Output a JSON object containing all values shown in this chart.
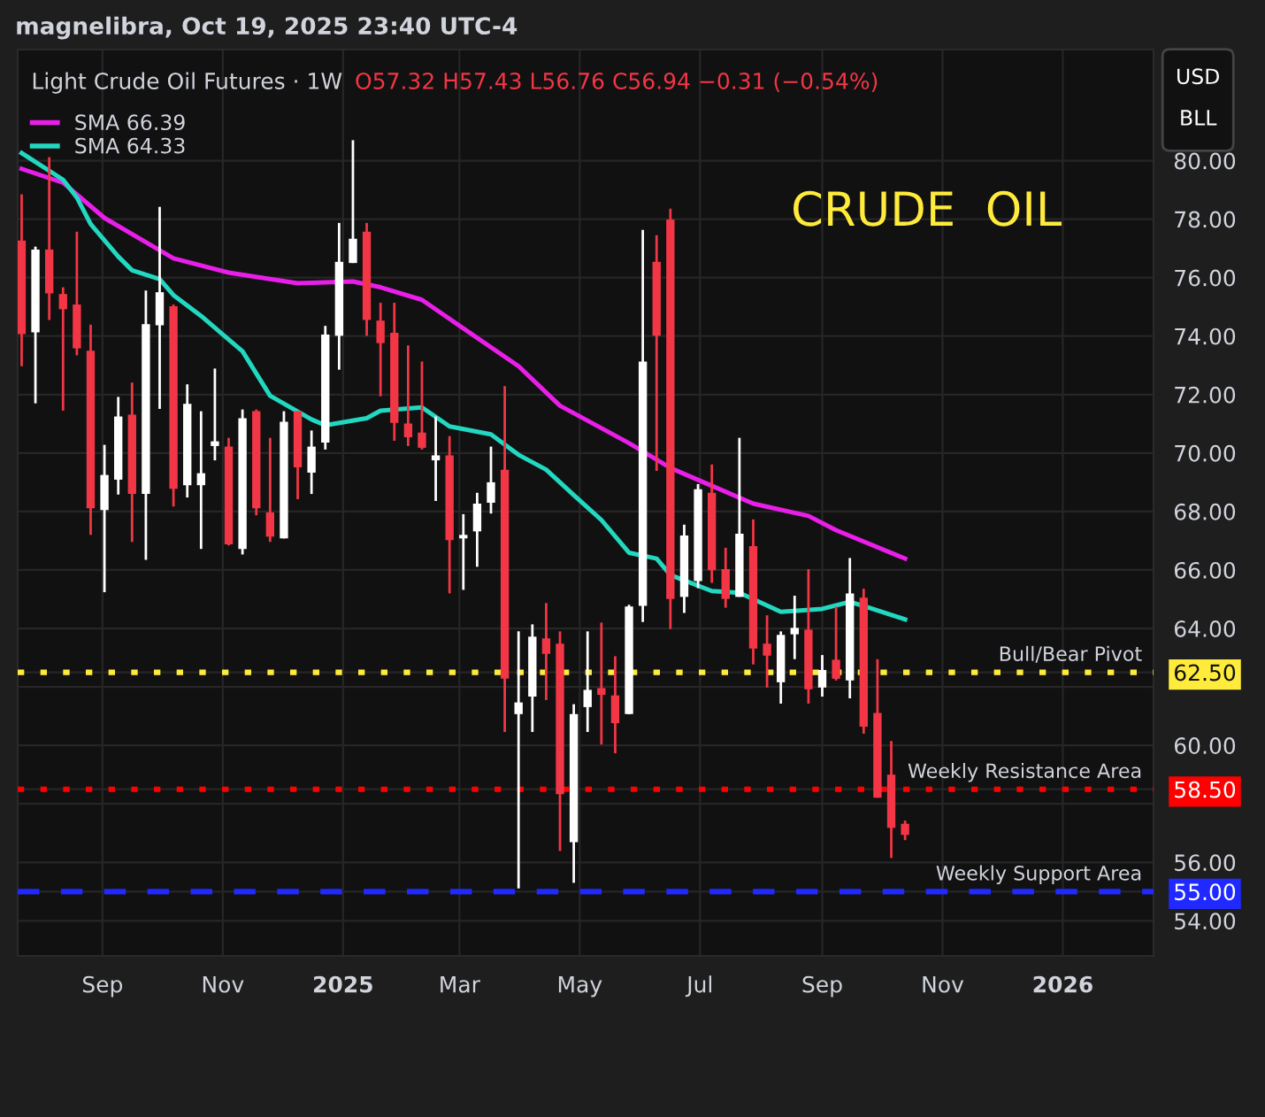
{
  "chart_data": {
    "type": "candlestick",
    "title": "Light Crude Oil Futures · 1W",
    "subtitle": "O57.32 H57.43 L56.76 C56.94 −0.31 (−0.54%)",
    "annotations": [
      "magnelibra, Oct 19, 2025 23:40 UTC-4",
      "CRUDE  OIL",
      "USD",
      "BLL"
    ],
    "x": [
      "2024-07-22",
      "2024-07-29",
      "2024-08-05",
      "2024-08-12",
      "2024-08-19",
      "2024-08-26",
      "2024-09-02",
      "2024-09-09",
      "2024-09-16",
      "2024-09-23",
      "2024-09-30",
      "2024-10-07",
      "2024-10-14",
      "2024-10-21",
      "2024-10-28",
      "2024-11-04",
      "2024-11-11",
      "2024-11-18",
      "2024-11-25",
      "2024-12-02",
      "2024-12-09",
      "2024-12-16",
      "2024-12-23",
      "2024-12-30",
      "2025-01-06",
      "2025-01-13",
      "2025-01-20",
      "2025-01-27",
      "2025-02-03",
      "2025-02-10",
      "2025-02-17",
      "2025-02-24",
      "2025-03-03",
      "2025-03-10",
      "2025-03-17",
      "2025-03-24",
      "2025-03-31",
      "2025-04-07",
      "2025-04-14",
      "2025-04-21",
      "2025-04-28",
      "2025-05-05",
      "2025-05-12",
      "2025-05-19",
      "2025-05-26",
      "2025-06-02",
      "2025-06-09",
      "2025-06-16",
      "2025-06-23",
      "2025-06-30",
      "2025-07-07",
      "2025-07-14",
      "2025-07-21",
      "2025-07-28",
      "2025-08-04",
      "2025-08-11",
      "2025-08-18",
      "2025-08-25",
      "2025-09-01",
      "2025-09-08",
      "2025-09-15",
      "2025-09-22",
      "2025-09-29",
      "2025-10-06",
      "2025-10-13"
    ],
    "ohlc": [
      [
        77.27,
        78.85,
        72.97,
        74.07
      ],
      [
        74.13,
        77.06,
        71.7,
        76.96
      ],
      [
        76.96,
        80.12,
        74.55,
        75.46
      ],
      [
        75.44,
        75.67,
        71.45,
        74.92
      ],
      [
        75.08,
        77.57,
        73.34,
        73.58
      ],
      [
        73.5,
        74.39,
        67.2,
        68.11
      ],
      [
        68.05,
        70.28,
        65.24,
        69.25
      ],
      [
        69.09,
        71.92,
        68.58,
        71.25
      ],
      [
        71.31,
        72.41,
        66.96,
        68.6
      ],
      [
        68.6,
        75.56,
        66.35,
        74.41
      ],
      [
        74.37,
        78.42,
        71.51,
        75.5
      ],
      [
        75.02,
        75.08,
        68.17,
        68.78
      ],
      [
        68.9,
        72.35,
        68.48,
        71.68
      ],
      [
        68.9,
        71.43,
        66.72,
        69.31
      ],
      [
        70.24,
        72.89,
        69.75,
        70.4
      ],
      [
        70.22,
        70.52,
        66.84,
        66.88
      ],
      [
        66.72,
        71.49,
        66.53,
        71.19
      ],
      [
        71.43,
        71.49,
        67.87,
        68.11
      ],
      [
        67.97,
        70.52,
        66.96,
        67.14
      ],
      [
        67.08,
        71.43,
        67.08,
        71.07
      ],
      [
        71.43,
        71.43,
        68.42,
        69.51
      ],
      [
        69.33,
        70.77,
        68.6,
        70.22
      ],
      [
        70.36,
        74.35,
        70.12,
        74.05
      ],
      [
        74.01,
        77.87,
        72.85,
        76.54
      ],
      [
        76.5,
        80.7,
        76.5,
        77.33
      ],
      [
        77.57,
        77.87,
        74.01,
        74.55
      ],
      [
        74.53,
        75.14,
        71.94,
        73.76
      ],
      [
        74.11,
        75.14,
        70.42,
        71.03
      ],
      [
        71.01,
        73.68,
        70.24,
        70.54
      ],
      [
        70.7,
        73.13,
        70.12,
        70.18
      ],
      [
        69.75,
        71.25,
        68.36,
        69.92
      ],
      [
        69.92,
        70.58,
        65.2,
        67.02
      ],
      [
        67.08,
        67.91,
        65.32,
        67.2
      ],
      [
        67.32,
        68.64,
        66.11,
        68.27
      ],
      [
        68.3,
        70.22,
        67.93,
        69.0
      ],
      [
        69.43,
        72.29,
        60.46,
        62.28
      ],
      [
        61.07,
        63.9,
        55.11,
        61.47
      ],
      [
        61.67,
        64.14,
        60.46,
        63.72
      ],
      [
        63.66,
        64.87,
        61.55,
        63.13
      ],
      [
        63.48,
        63.9,
        56.39,
        58.33
      ],
      [
        56.69,
        61.41,
        55.3,
        61.07
      ],
      [
        61.31,
        63.9,
        60.46,
        61.9
      ],
      [
        61.96,
        64.2,
        60.03,
        61.73
      ],
      [
        61.71,
        63.05,
        59.73,
        60.76
      ],
      [
        61.07,
        64.81,
        61.07,
        64.75
      ],
      [
        64.77,
        77.63,
        64.22,
        73.13
      ],
      [
        76.54,
        77.45,
        69.39,
        74.01
      ],
      [
        77.99,
        78.36,
        63.98,
        65.01
      ],
      [
        65.08,
        67.55,
        64.53,
        67.18
      ],
      [
        65.62,
        68.94,
        65.38,
        68.76
      ],
      [
        68.64,
        69.61,
        65.56,
        65.99
      ],
      [
        66.03,
        66.76,
        64.71,
        65.01
      ],
      [
        65.08,
        70.52,
        65.08,
        67.24
      ],
      [
        66.82,
        67.73,
        62.77,
        63.31
      ],
      [
        63.48,
        64.45,
        61.98,
        63.07
      ],
      [
        62.16,
        63.9,
        61.43,
        63.78
      ],
      [
        63.8,
        65.12,
        62.95,
        64.02
      ],
      [
        63.96,
        66.03,
        61.43,
        61.92
      ],
      [
        61.98,
        63.09,
        61.67,
        62.58
      ],
      [
        62.93,
        64.75,
        62.22,
        62.28
      ],
      [
        62.22,
        66.41,
        61.61,
        65.2
      ],
      [
        65.05,
        65.36,
        60.4,
        60.64
      ],
      [
        61.11,
        62.95,
        58.21,
        58.21
      ],
      [
        59.0,
        60.15,
        56.15,
        57.18
      ],
      [
        57.32,
        57.43,
        56.76,
        56.94
      ]
    ],
    "colors": [
      "#f23645",
      "#ffffff",
      "#f23645",
      "#f23645",
      "#f23645",
      "#f23645",
      "#ffffff",
      "#ffffff",
      "#f23645",
      "#ffffff",
      "#ffffff",
      "#f23645",
      "#ffffff",
      "#ffffff",
      "#ffffff",
      "#f23645",
      "#ffffff",
      "#f23645",
      "#f23645",
      "#ffffff",
      "#f23645",
      "#ffffff",
      "#ffffff",
      "#ffffff",
      "#ffffff",
      "#f23645",
      "#f23645",
      "#f23645",
      "#f23645",
      "#f23645",
      "#ffffff",
      "#f23645",
      "#ffffff",
      "#ffffff",
      "#ffffff",
      "#f23645",
      "#ffffff",
      "#ffffff",
      "#f23645",
      "#f23645",
      "#ffffff",
      "#ffffff",
      "#f23645",
      "#f23645",
      "#ffffff",
      "#ffffff",
      "#f23645",
      "#f23645",
      "#ffffff",
      "#ffffff",
      "#f23645",
      "#f23645",
      "#ffffff",
      "#f23645",
      "#f23645",
      "#ffffff",
      "#ffffff",
      "#f23645",
      "#ffffff",
      "#f23645",
      "#ffffff",
      "#f23645",
      "#f23645",
      "#f23645",
      "#f23645"
    ],
    "series": [
      {
        "type": "line",
        "name": "SMA 66.39",
        "color": "#e91ee9",
        "x": [
          "2024-07-22",
          "2024-08-12",
          "2024-09-02",
          "2024-10-07",
          "2024-11-04",
          "2024-11-25",
          "2024-12-09",
          "2025-01-06",
          "2025-01-20",
          "2025-02-10",
          "2025-02-24",
          "2025-03-31",
          "2025-04-21",
          "2025-05-26",
          "2025-06-16",
          "2025-07-07",
          "2025-07-28",
          "2025-08-25",
          "2025-09-08",
          "2025-10-13"
        ],
        "values": [
          79.72,
          79.25,
          78.04,
          76.66,
          76.17,
          75.95,
          75.81,
          75.87,
          75.67,
          75.24,
          74.59,
          72.97,
          71.62,
          70.34,
          69.49,
          68.88,
          68.27,
          67.85,
          67.36,
          66.39
        ]
      },
      {
        "type": "line",
        "name": "SMA 64.33",
        "color": "#22d8c0",
        "x": [
          "2024-07-22",
          "2024-08-12",
          "2024-08-19",
          "2024-08-26",
          "2024-09-09",
          "2024-09-16",
          "2024-09-30",
          "2024-10-07",
          "2024-10-21",
          "2024-11-11",
          "2024-11-25",
          "2024-12-16",
          "2024-12-23",
          "2025-01-13",
          "2025-01-20",
          "2025-02-10",
          "2025-02-24",
          "2025-03-17",
          "2025-03-31",
          "2025-04-14",
          "2025-04-28",
          "2025-05-12",
          "2025-05-26",
          "2025-06-09",
          "2025-06-16",
          "2025-07-07",
          "2025-07-21",
          "2025-08-11",
          "2025-09-01",
          "2025-09-15",
          "2025-09-22",
          "2025-10-13"
        ],
        "values": [
          80.26,
          79.35,
          78.74,
          77.83,
          76.72,
          76.25,
          75.95,
          75.4,
          74.69,
          73.48,
          71.96,
          71.15,
          70.95,
          71.19,
          71.45,
          71.56,
          70.91,
          70.64,
          69.94,
          69.43,
          68.56,
          67.71,
          66.59,
          66.39,
          65.83,
          65.28,
          65.22,
          64.57,
          64.67,
          64.91,
          64.77,
          64.31
        ]
      }
    ],
    "ref_lines": [
      {
        "axis": "y",
        "value": 62.5,
        "label": "Bull/Bear Pivot",
        "color": "#ffeb3b",
        "line_style": "dotted"
      },
      {
        "axis": "y",
        "value": 58.5,
        "label": "Weekly Resistance Area",
        "color": "#ff0000",
        "line_style": "dotted"
      },
      {
        "axis": "y",
        "value": 55,
        "label": "Weekly Support Area",
        "color": "#2029ff",
        "line_style": "dashed"
      }
    ],
    "xlim": [
      "2024-07-20",
      "2026-02-16"
    ],
    "xticks": [
      {
        "value": "2024-09-01",
        "label": "Sep"
      },
      {
        "value": "2024-11-01",
        "label": "Nov"
      },
      {
        "value": "2025-01-01",
        "label": "2025"
      },
      {
        "value": "2025-03-01",
        "label": "Mar"
      },
      {
        "value": "2025-05-01",
        "label": "May"
      },
      {
        "value": "2025-07-01",
        "label": "Jul"
      },
      {
        "value": "2025-09-01",
        "label": "Sep"
      },
      {
        "value": "2025-11-01",
        "label": "Nov"
      },
      {
        "value": "2026-01-01",
        "label": "2026"
      }
    ],
    "ylim": [
      52.8,
      83.8
    ],
    "yticks": [
      {
        "value": 54,
        "label": "54.00"
      },
      {
        "value": 55,
        "label": "55.00"
      },
      {
        "value": 56,
        "label": "56.00"
      },
      {
        "value": 58,
        "label": null
      },
      {
        "value": 58.5,
        "label": "58.50"
      },
      {
        "value": 60,
        "label": "60.00"
      },
      {
        "value": 62,
        "label": null
      },
      {
        "value": 62.5,
        "label": "62.50"
      },
      {
        "value": 64,
        "label": "64.00"
      },
      {
        "value": 66,
        "label": "66.00"
      },
      {
        "value": 68,
        "label": "68.00"
      },
      {
        "value": 70,
        "label": "70.00"
      },
      {
        "value": 72,
        "label": "72.00"
      },
      {
        "value": 74,
        "label": "74.00"
      },
      {
        "value": 76,
        "label": "76.00"
      },
      {
        "value": 78,
        "label": "78.00"
      },
      {
        "value": 80,
        "label": "80.00"
      }
    ],
    "grid": true,
    "legend": "top left"
  }
}
